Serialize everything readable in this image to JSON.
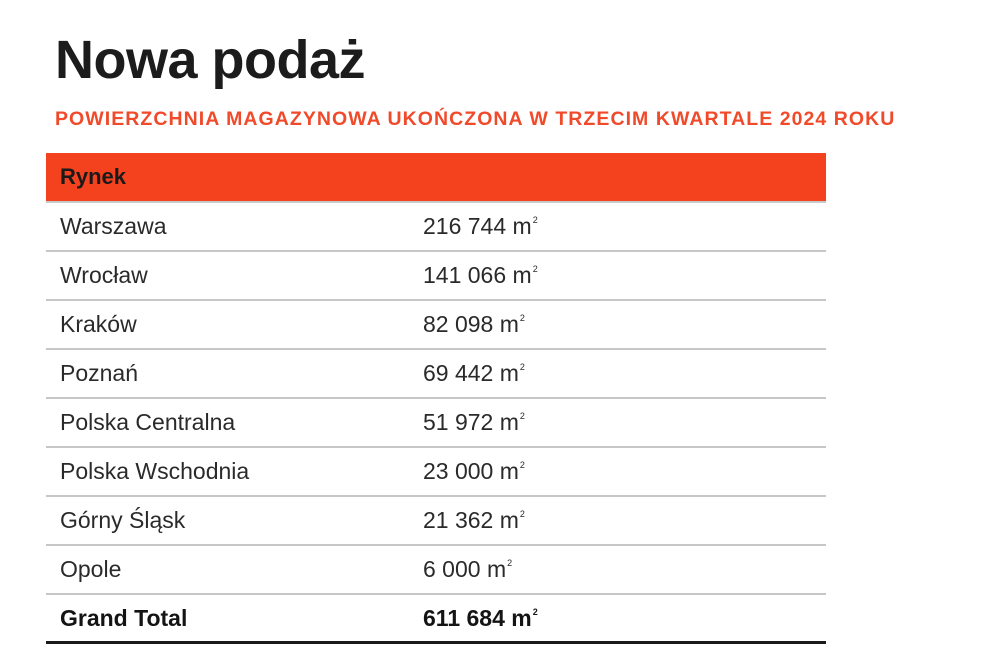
{
  "title": "Nowa podaż",
  "subtitle": "POWIERZCHNIA MAGAZYNOWA UKOŃCZONA W TRZECIM KWARTALE 2024 ROKU",
  "colors": {
    "accent": "#f4421f",
    "subtitle": "#f04a2a",
    "text": "#1a1a1a",
    "divider": "#c7c7c7"
  },
  "chart_data": {
    "type": "table",
    "columns": [
      "Rynek",
      ""
    ],
    "unit": "m",
    "unit_superscript": "2",
    "rows": [
      {
        "label": "Warszawa",
        "value": 216744,
        "display": "216 744"
      },
      {
        "label": "Wrocław",
        "value": 141066,
        "display": "141 066"
      },
      {
        "label": "Kraków",
        "value": 82098,
        "display": "82 098"
      },
      {
        "label": "Poznań",
        "value": 69442,
        "display": "69 442"
      },
      {
        "label": "Polska Centralna",
        "value": 51972,
        "display": "51 972"
      },
      {
        "label": "Polska Wschodnia",
        "value": 23000,
        "display": "23 000"
      },
      {
        "label": "Górny Śląsk",
        "value": 21362,
        "display": "21 362"
      },
      {
        "label": "Opole",
        "value": 6000,
        "display": "6 000"
      }
    ],
    "total": {
      "label": "Grand Total",
      "value": 611684,
      "display": "611 684"
    }
  }
}
